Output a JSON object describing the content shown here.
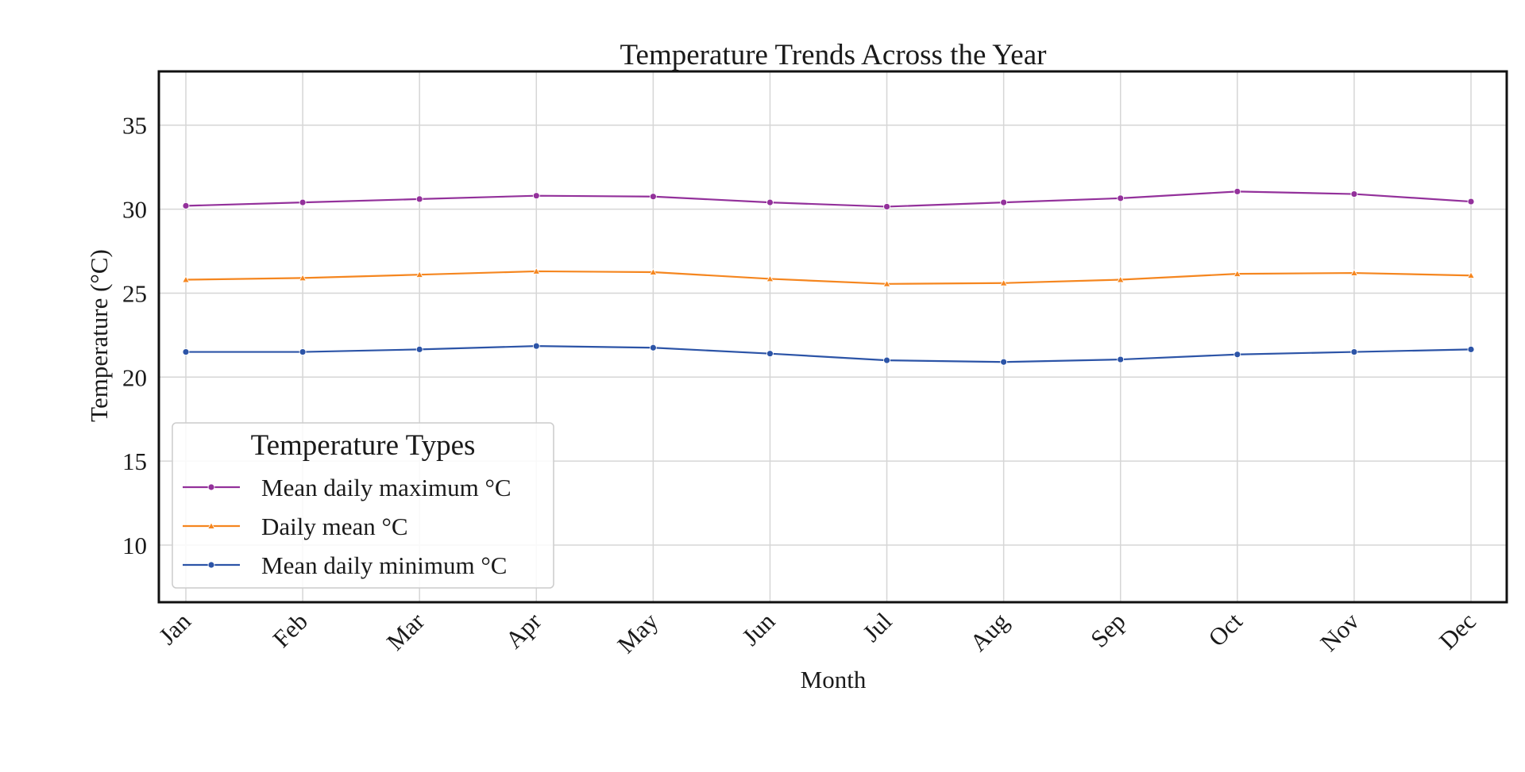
{
  "chart_data": {
    "type": "line",
    "title": "Temperature Trends Across the Year",
    "xlabel": "Month",
    "ylabel": "Temperature (°C)",
    "categories": [
      "Jan",
      "Feb",
      "Mar",
      "Apr",
      "May",
      "Jun",
      "Jul",
      "Aug",
      "Sep",
      "Oct",
      "Nov",
      "Dec"
    ],
    "ylim": [
      6.6,
      38.2
    ],
    "yticks": [
      10,
      15,
      20,
      25,
      30,
      35
    ],
    "grid": true,
    "legend": {
      "title": "Temperature Types",
      "placement": "lower-left"
    },
    "series": [
      {
        "name": "Mean daily maximum °C",
        "color": "#93319b",
        "marker": "circle",
        "values": [
          30.2,
          30.4,
          30.6,
          30.8,
          30.75,
          30.4,
          30.15,
          30.4,
          30.65,
          31.05,
          30.9,
          30.45
        ]
      },
      {
        "name": "Daily mean °C",
        "color": "#f5861f",
        "marker": "triangle",
        "values": [
          25.8,
          25.9,
          26.1,
          26.3,
          26.25,
          25.85,
          25.55,
          25.6,
          25.8,
          26.15,
          26.2,
          26.05
        ]
      },
      {
        "name": "Mean daily minimum °C",
        "color": "#2c54a7",
        "marker": "circle",
        "values": [
          21.5,
          21.5,
          21.65,
          21.85,
          21.75,
          21.4,
          21.0,
          20.9,
          21.05,
          21.35,
          21.5,
          21.65
        ]
      }
    ]
  }
}
